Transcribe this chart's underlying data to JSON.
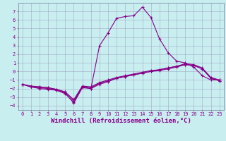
{
  "xlabel": "Windchill (Refroidissement éolien,°C)",
  "bg_color": "#c8eef0",
  "line_color": "#880088",
  "xlim": [
    -0.5,
    23.5
  ],
  "ylim": [
    -4.5,
    8.0
  ],
  "xticks": [
    0,
    1,
    2,
    3,
    4,
    5,
    6,
    7,
    8,
    9,
    10,
    11,
    12,
    13,
    14,
    15,
    16,
    17,
    18,
    19,
    20,
    21,
    22,
    23
  ],
  "yticks": [
    -4,
    -3,
    -2,
    -1,
    0,
    1,
    2,
    3,
    4,
    5,
    6,
    7
  ],
  "series": [
    {
      "x": [
        0,
        1,
        2,
        3,
        4,
        5,
        6,
        7,
        8,
        9,
        10,
        11,
        12,
        13,
        14,
        15,
        16,
        17,
        18,
        19,
        20,
        21,
        22,
        23
      ],
      "y": [
        -1.5,
        -1.8,
        -2.0,
        -2.1,
        -2.2,
        -2.6,
        -3.6,
        -1.8,
        -2.0,
        3.0,
        4.5,
        6.2,
        6.4,
        6.5,
        7.5,
        6.3,
        3.8,
        2.2,
        1.2,
        1.0,
        0.5,
        -0.5,
        -1.0,
        -1.0
      ]
    },
    {
      "x": [
        0,
        1,
        2,
        3,
        4,
        5,
        6,
        7,
        8,
        9,
        10,
        11,
        12,
        13,
        14,
        15,
        16,
        17,
        18,
        19,
        20,
        21,
        22,
        23
      ],
      "y": [
        -1.5,
        -1.8,
        -1.9,
        -2.0,
        -2.2,
        -2.5,
        -3.7,
        -1.9,
        -2.0,
        -1.5,
        -1.2,
        -0.8,
        -0.6,
        -0.4,
        -0.2,
        0.0,
        0.2,
        0.4,
        0.6,
        0.8,
        0.7,
        0.3,
        -0.8,
        -1.1
      ]
    },
    {
      "x": [
        0,
        1,
        2,
        3,
        4,
        5,
        6,
        7,
        8,
        9,
        10,
        11,
        12,
        13,
        14,
        15,
        16,
        17,
        18,
        19,
        20,
        21,
        22,
        23
      ],
      "y": [
        -1.5,
        -1.7,
        -1.8,
        -1.9,
        -2.1,
        -2.4,
        -3.3,
        -1.7,
        -1.8,
        -1.3,
        -1.0,
        -0.7,
        -0.5,
        -0.3,
        -0.1,
        0.1,
        0.2,
        0.4,
        0.6,
        0.9,
        0.8,
        0.4,
        -0.7,
        -1.0
      ]
    },
    {
      "x": [
        0,
        1,
        2,
        3,
        4,
        5,
        6,
        7,
        8,
        9,
        10,
        11,
        12,
        13,
        14,
        15,
        16,
        17,
        18,
        19,
        20,
        21,
        22,
        23
      ],
      "y": [
        -1.5,
        -1.8,
        -1.8,
        -1.9,
        -2.1,
        -2.4,
        -3.4,
        -1.8,
        -1.9,
        -1.4,
        -1.1,
        -0.8,
        -0.6,
        -0.4,
        -0.2,
        0.0,
        0.1,
        0.3,
        0.5,
        0.8,
        0.7,
        0.3,
        -0.8,
        -1.1
      ]
    }
  ],
  "marker": "+",
  "markersize": 3.5,
  "linewidth": 0.8,
  "xlabel_fontsize": 6.5,
  "tick_fontsize": 5.0,
  "grid_color": "#9999bb",
  "grid_alpha": 0.8,
  "grid_linewidth": 0.4
}
